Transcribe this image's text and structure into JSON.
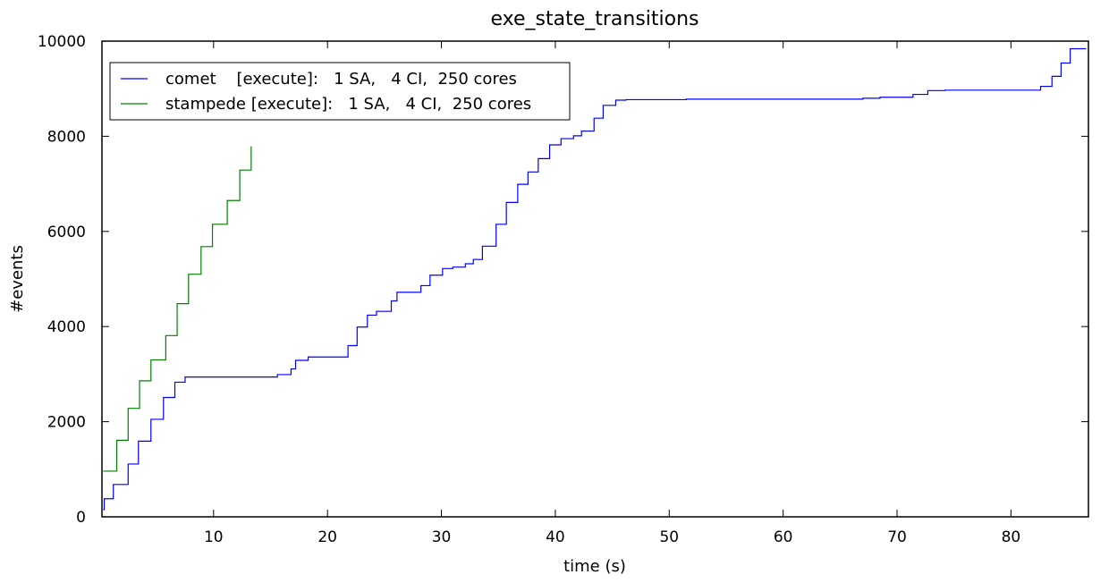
{
  "chart_data": {
    "type": "line",
    "title": "exe_state_transitions",
    "xlabel": "time (s)",
    "ylabel": "#events",
    "xlim": [
      0.2,
      86.8
    ],
    "ylim": [
      0,
      10000
    ],
    "xticks": [
      10,
      20,
      30,
      40,
      50,
      60,
      70,
      80
    ],
    "xtick_labels": [
      "10",
      "20",
      "30",
      "40",
      "50",
      "60",
      "70",
      "80"
    ],
    "yticks": [
      0,
      2000,
      4000,
      6000,
      8000,
      10000
    ],
    "ytick_labels": [
      "0",
      "2000",
      "4000",
      "6000",
      "8000",
      "10000"
    ],
    "legend_position": "top-left",
    "series": [
      {
        "name": "comet    [execute]:   1 SA,   4 CI,  250 cores",
        "color": "#0000ff",
        "step": "post",
        "x": [
          0.3,
          0.4,
          1.2,
          2.5,
          3.4,
          4.5,
          5.6,
          6.6,
          7.5,
          15.6,
          16.8,
          17.2,
          18.3,
          21.8,
          22.6,
          23.5,
          24.3,
          25.6,
          26.1,
          28.2,
          29.0,
          30.1,
          31.0,
          32.1,
          32.8,
          33.6,
          34.8,
          35.7,
          36.7,
          37.6,
          38.5,
          39.5,
          40.5,
          41.6,
          42.3,
          43.4,
          44.2,
          45.3,
          46.2,
          51.5,
          67.0,
          68.5,
          71.4,
          72.7,
          74.2,
          82.6,
          83.6,
          84.4,
          85.2,
          85.9,
          86.6
        ],
        "y": [
          150,
          380,
          680,
          1110,
          1590,
          2050,
          2510,
          2830,
          2940,
          2990,
          3110,
          3290,
          3360,
          3600,
          3990,
          4240,
          4320,
          4540,
          4720,
          4860,
          5080,
          5220,
          5250,
          5320,
          5410,
          5690,
          6150,
          6610,
          6990,
          7250,
          7530,
          7820,
          7950,
          8010,
          8110,
          8380,
          8650,
          8760,
          8770,
          8780,
          8800,
          8820,
          8880,
          8960,
          8970,
          9050,
          9260,
          9540,
          9840,
          9840,
          9840
        ]
      },
      {
        "name": "stampede [execute]:   1 SA,   4 CI,  250 cores",
        "color": "#008000",
        "step": "post",
        "x": [
          0.3,
          1.5,
          2.5,
          3.5,
          4.5,
          5.8,
          6.8,
          7.8,
          8.9,
          9.9,
          11.2,
          12.3,
          13.3
        ],
        "y": [
          960,
          1610,
          2280,
          2860,
          3300,
          3810,
          4480,
          5100,
          5680,
          6150,
          6650,
          7290,
          7790
        ]
      }
    ]
  }
}
